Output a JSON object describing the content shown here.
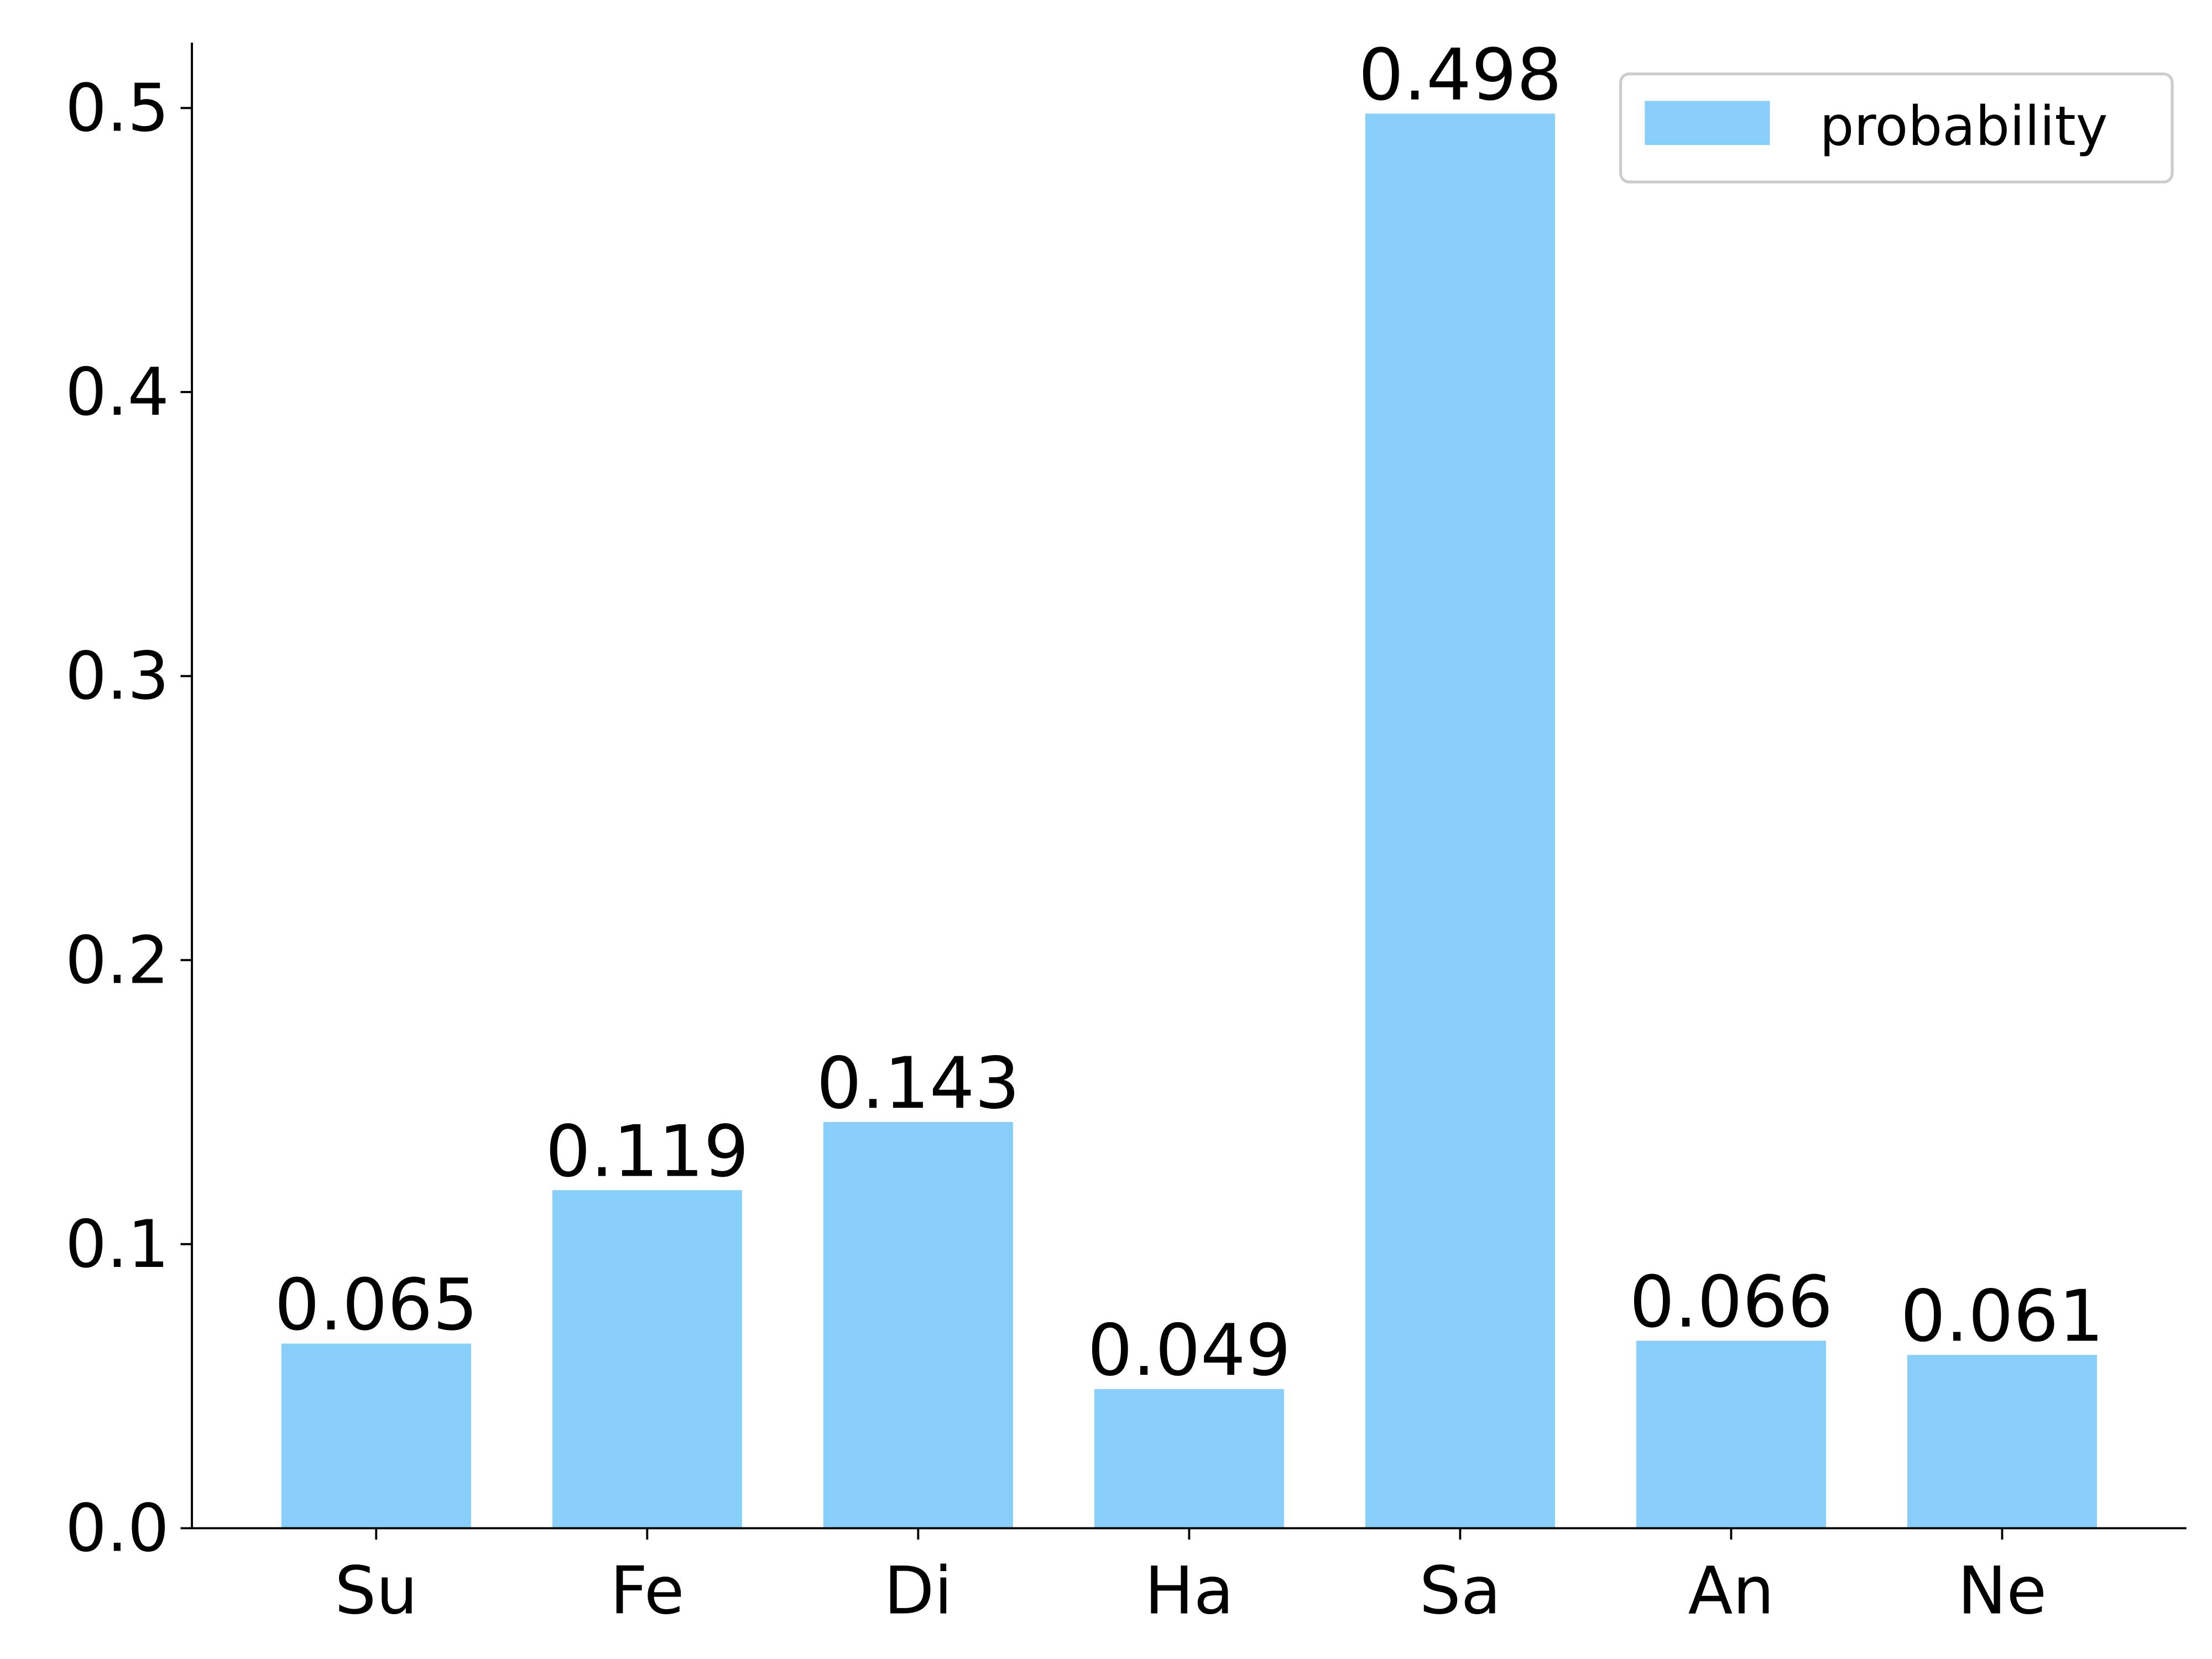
{
  "chart_data": {
    "type": "bar",
    "categories": [
      "Su",
      "Fe",
      "Di",
      "Ha",
      "Sa",
      "An",
      "Ne"
    ],
    "series": [
      {
        "name": "probability",
        "color": "#87cefa",
        "values": [
          0.065,
          0.119,
          0.143,
          0.049,
          0.498,
          0.066,
          0.061
        ]
      }
    ],
    "ylim": [
      0,
      0.523
    ],
    "yticks": [
      {
        "value": 0,
        "label": "0.0"
      },
      0.1,
      0.2,
      0.3,
      0.4,
      0.5
    ],
    "grid": false,
    "legend": "upper right"
  }
}
